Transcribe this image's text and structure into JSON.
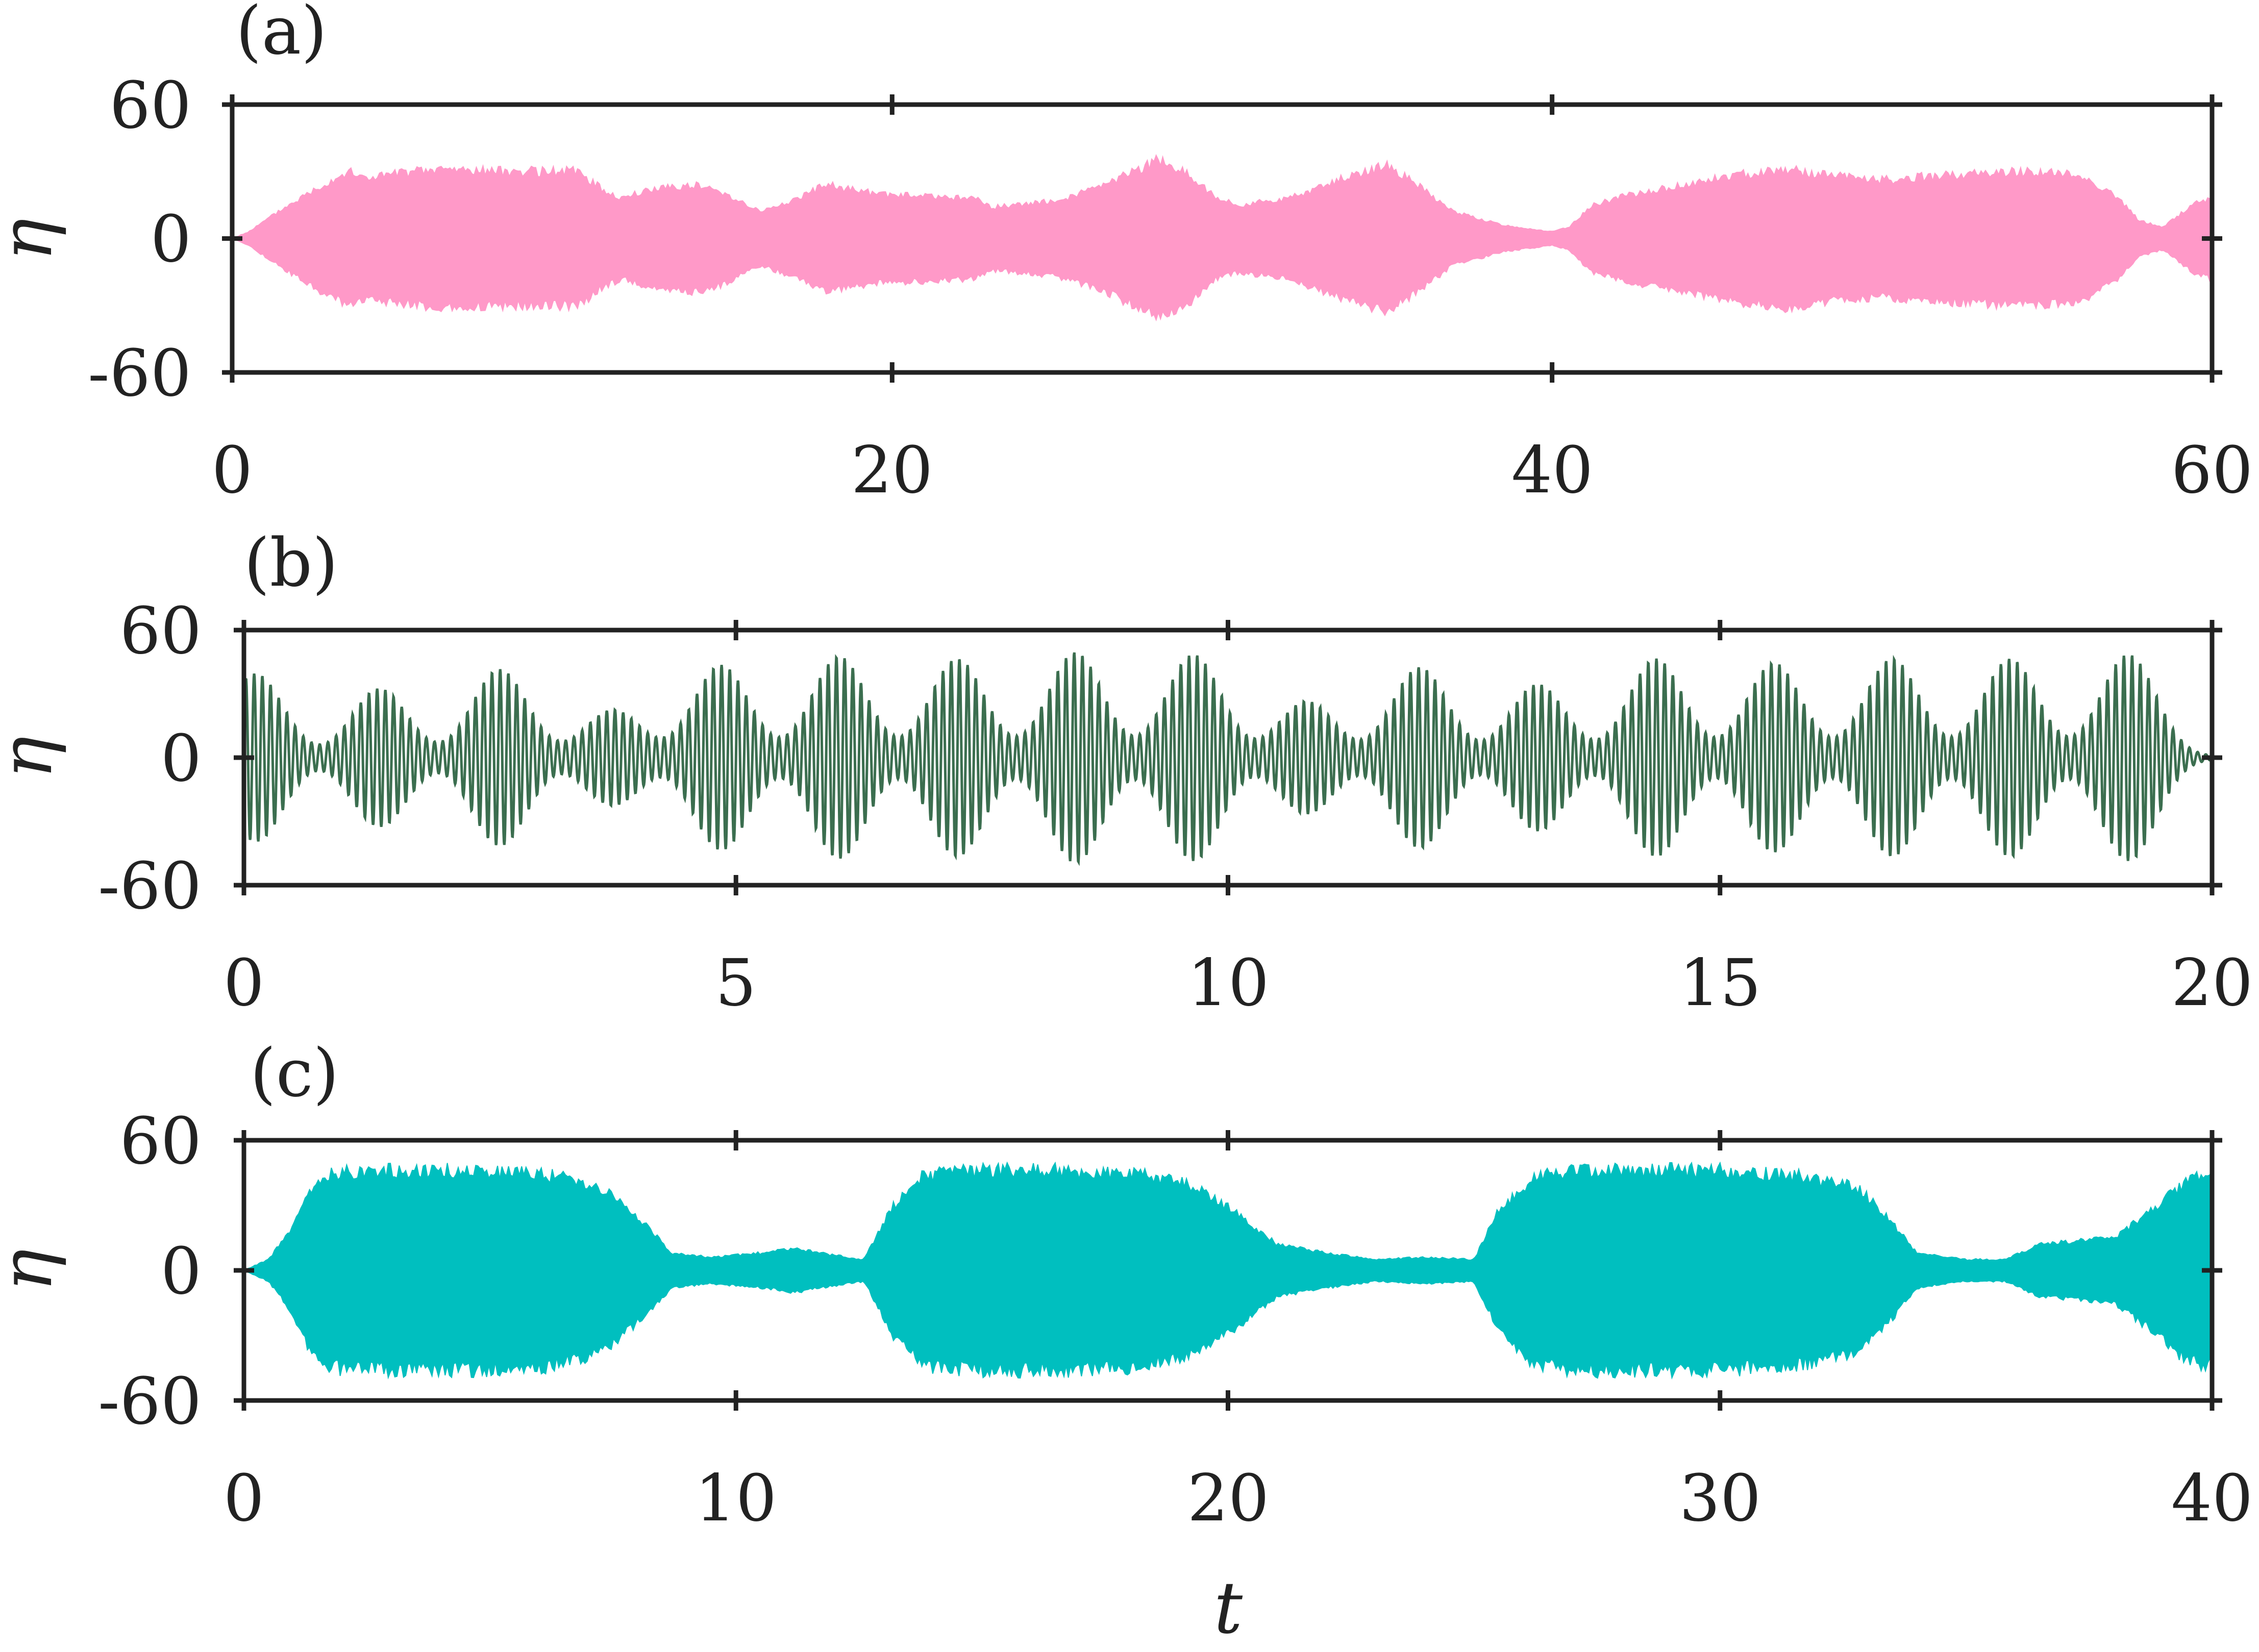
{
  "chart_data": [
    {
      "type": "line",
      "panel_label": "(a)",
      "ylabel": "η",
      "xlabel": "",
      "xlim": [
        0,
        60
      ],
      "ylim": [
        -60,
        60
      ],
      "xticks": [
        0,
        20,
        40,
        60
      ],
      "yticks": [
        -60,
        0,
        60
      ],
      "xtick_labels": [
        "0",
        "20",
        "40",
        "60"
      ],
      "ytick_labels": [
        "-60",
        "0",
        "60"
      ],
      "color": "#ff99c8",
      "envelope": {
        "t": [
          0,
          0.5,
          1.5,
          2.5,
          3.5,
          4,
          5,
          6.5,
          8,
          9.5,
          10.5,
          11.2,
          11.8,
          13,
          14,
          15,
          16,
          17,
          18,
          19.5,
          21,
          22.5,
          23,
          25,
          26.5,
          28,
          29,
          29.8,
          30.5,
          32,
          33.5,
          35,
          35.8,
          37,
          38.5,
          40,
          40.5,
          41.2,
          42.5,
          44,
          45.5,
          47,
          48.5,
          50,
          51.5,
          53,
          54.5,
          56,
          57,
          57.8,
          58.5,
          59.5,
          60
        ],
        "amp": [
          0,
          3,
          13,
          22,
          30,
          27,
          29,
          31,
          30,
          30,
          30,
          22,
          18,
          23,
          24,
          20,
          12,
          17,
          24,
          20,
          19,
          18,
          14,
          17,
          24,
          35,
          29,
          18,
          15,
          18,
          26,
          33,
          25,
          12,
          6,
          3,
          5,
          15,
          20,
          24,
          28,
          31,
          28,
          26,
          28,
          29,
          30,
          28,
          20,
          8,
          5,
          16,
          18
        ]
      }
    },
    {
      "type": "line",
      "panel_label": "(b)",
      "ylabel": "η",
      "xlabel": "",
      "xlim": [
        0,
        20
      ],
      "ylim": [
        -60,
        60
      ],
      "xticks": [
        0,
        5,
        10,
        15,
        20
      ],
      "yticks": [
        -60,
        0,
        60
      ],
      "xtick_labels": [
        "0",
        "5",
        "10",
        "15",
        "20"
      ],
      "ytick_labels": [
        "-60",
        "0",
        "60"
      ],
      "color": "#3b6e4f",
      "bursts": {
        "center": [
          0.12,
          1.38,
          2.6,
          3.75,
          4.85,
          6.05,
          7.25,
          8.45,
          9.65,
          10.8,
          11.95,
          13.15,
          14.35,
          15.55,
          16.75,
          17.95,
          19.15
        ],
        "amp": [
          39,
          32,
          41,
          22,
          43,
          47,
          46,
          49,
          48,
          26,
          42,
          34,
          46,
          44,
          46,
          46,
          48
        ]
      }
    },
    {
      "type": "line",
      "panel_label": "(c)",
      "ylabel": "η",
      "xlabel": "t",
      "xlim": [
        0,
        40
      ],
      "ylim": [
        -60,
        60
      ],
      "xticks": [
        0,
        10,
        20,
        30,
        40
      ],
      "yticks": [
        -60,
        0,
        60
      ],
      "xtick_labels": [
        "0",
        "10",
        "20",
        "30",
        "40"
      ],
      "ytick_labels": [
        "-60",
        "0",
        "60"
      ],
      "color": "#00bfbf",
      "envelope": {
        "t": [
          0,
          0.5,
          1,
          1.3,
          1.8,
          3,
          4.5,
          6,
          7,
          7.5,
          8.2,
          8.7,
          9.5,
          10.5,
          11.2,
          12,
          12.6,
          13.2,
          13.8,
          15,
          16.5,
          18,
          19.2,
          20.2,
          21,
          22,
          23,
          24,
          25,
          25.5,
          26.2,
          27,
          28.5,
          30,
          31.5,
          32.8,
          33.5,
          34,
          35,
          35.8,
          36.5,
          37.5,
          38,
          38.8,
          39.5,
          40
        ],
        "amp": [
          0,
          5,
          20,
          35,
          45,
          46,
          46,
          45,
          40,
          34,
          20,
          8,
          6,
          8,
          10,
          7,
          5,
          30,
          44,
          46,
          46,
          45,
          40,
          26,
          12,
          8,
          5,
          6,
          5,
          28,
          43,
          46,
          46,
          46,
          44,
          38,
          22,
          8,
          5,
          5,
          12,
          14,
          15,
          28,
          42,
          44
        ]
      }
    }
  ]
}
